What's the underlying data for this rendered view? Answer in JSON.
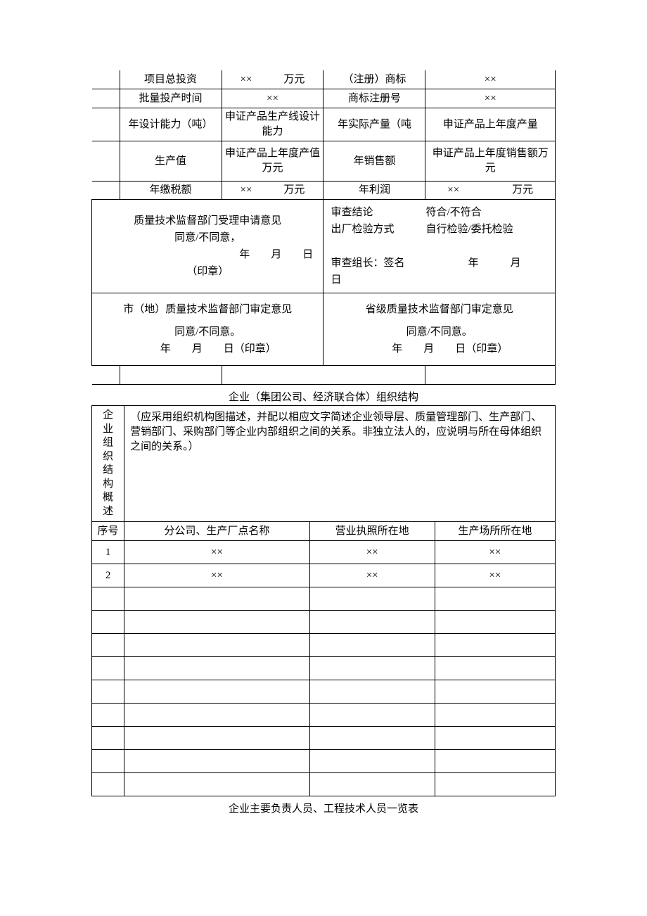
{
  "xx": "××",
  "t1": {
    "r1c1": "项目总投资",
    "r1c2": "××　　　万元",
    "r1c3": "（注册）商标",
    "r1c4": "××",
    "r2c1": "批量投产时间",
    "r2c2": "××",
    "r2c3": "商标注册号",
    "r2c4": "××",
    "r3c1": "年设计能力（吨）",
    "r3c2": "申证产品生产线设计能力",
    "r3c3": "年实际产量（吨",
    "r3c4": "申证产品上年度产量",
    "r4c1": "生产值",
    "r4c2": "申证产品上年度产值　　　万元",
    "r4c3": "年销售额",
    "r4c4": "申证产品上年度销售额万元",
    "r5c1": "年缴税额",
    "r5c2": "××　　　万元",
    "r5c3": "年利润",
    "r5c4": "××　　　　　万元",
    "block_left1": "质量技术监督部门受理申请意见\n同意/不同意，\n　　　　　　　　　　　　　年　　月　　日（印章）",
    "block_right1": "审查结论　　　　　符合/不符合\n出厂检验方式　　　自行检验/委托检验\n\n审查组长：签名　　　　　　年　　　月　　　日",
    "block_left2_title": "市（地）质量技术监督部门审定意见",
    "block_right2_title": "省级质量技术监督部门审定意见",
    "block2_body": "同意/不同意。\n　　年　　月　　日（印章）"
  },
  "caption1": "企业（集团公司、经济联合体）组织结构",
  "t2": {
    "col0": "企业组织结构概述",
    "desc": "（应采用组织机构图描述，并配以相应文字简述企业领导层、质量管理部门、生产部门、营销部门、采购部门等企业内部组织之间的关系。非独立法人的，应说明与所在母体组织之间的关系。）",
    "h0": "序号",
    "h1": "分公司、生产厂点名称",
    "h2": "营业执照所在地",
    "h3": "生产场所所在地",
    "rows": [
      {
        "n": "1",
        "a": "××",
        "b": "××",
        "c": "××"
      },
      {
        "n": "2",
        "a": "××",
        "b": "××",
        "c": "××"
      },
      {
        "n": "",
        "a": "",
        "b": "",
        "c": ""
      },
      {
        "n": "",
        "a": "",
        "b": "",
        "c": ""
      },
      {
        "n": "",
        "a": "",
        "b": "",
        "c": ""
      },
      {
        "n": "",
        "a": "",
        "b": "",
        "c": ""
      },
      {
        "n": "",
        "a": "",
        "b": "",
        "c": ""
      },
      {
        "n": "",
        "a": "",
        "b": "",
        "c": ""
      },
      {
        "n": "",
        "a": "",
        "b": "",
        "c": ""
      },
      {
        "n": "",
        "a": "",
        "b": "",
        "c": ""
      },
      {
        "n": "",
        "a": "",
        "b": "",
        "c": ""
      }
    ]
  },
  "caption2": "企业主要负责人员、工程技术人员一览表"
}
